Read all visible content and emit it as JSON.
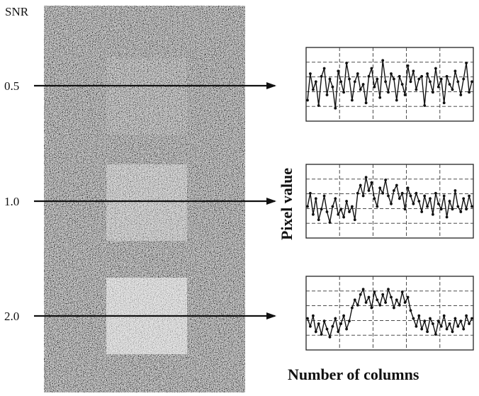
{
  "snr_heading": "SNR",
  "rows": [
    {
      "snr_label": "0.5",
      "plot": [
        -0.6,
        0.4,
        -0.2,
        0.1,
        -0.8,
        0.3,
        0.6,
        -0.4,
        0.2,
        -0.1,
        -0.9,
        0.5,
        0.1,
        -0.3,
        0.8,
        0.2,
        -0.6,
        0.1,
        0.4,
        -0.2,
        0.0,
        -0.7,
        0.3,
        0.6,
        -0.1,
        0.2,
        -0.5,
        0.9,
        0.1,
        -0.3,
        0.4,
        0.2,
        -0.6,
        0.3,
        0.0,
        -0.4,
        0.7,
        0.1,
        0.5,
        -0.2,
        0.2,
        0.3,
        -0.8,
        0.4,
        0.1,
        -0.3,
        0.6,
        -0.1,
        0.2,
        -0.7,
        0.3,
        0.0,
        -0.2,
        0.5,
        0.1,
        -0.4,
        0.2,
        0.8,
        -0.3,
        0.1
      ]
    },
    {
      "snr_label": "1.0",
      "plot": [
        -0.2,
        0.3,
        -0.5,
        0.1,
        -0.7,
        -0.3,
        0.2,
        -0.4,
        -0.8,
        -0.2,
        0.1,
        -0.5,
        -0.3,
        -0.6,
        0.0,
        -0.4,
        -0.2,
        -0.7,
        0.3,
        0.6,
        0.2,
        0.9,
        0.4,
        0.7,
        0.1,
        -0.2,
        0.5,
        0.3,
        0.8,
        0.2,
        -0.1,
        0.4,
        0.6,
        0.1,
        0.3,
        -0.3,
        0.5,
        0.2,
        -0.1,
        0.3,
        0.0,
        -0.4,
        0.2,
        -0.2,
        0.1,
        -0.5,
        0.3,
        -0.1,
        -0.3,
        0.2,
        -0.6,
        0.0,
        -0.3,
        0.4,
        -0.2,
        -0.4,
        0.1,
        -0.3,
        0.2,
        -0.2
      ]
    },
    {
      "snr_label": "2.0",
      "plot": [
        -0.2,
        -0.5,
        -0.1,
        -0.7,
        -0.4,
        -0.8,
        -0.3,
        -0.6,
        -0.9,
        -0.5,
        -0.2,
        -0.7,
        -0.4,
        -0.1,
        -0.6,
        -0.3,
        0.2,
        0.5,
        0.3,
        0.7,
        0.9,
        0.4,
        0.6,
        0.2,
        0.8,
        0.5,
        0.3,
        0.7,
        0.4,
        0.9,
        0.6,
        0.2,
        0.5,
        0.3,
        0.8,
        0.4,
        0.6,
        0.1,
        -0.2,
        -0.5,
        -0.1,
        -0.6,
        -0.3,
        -0.7,
        -0.2,
        -0.4,
        -0.8,
        -0.3,
        -0.5,
        -0.1,
        -0.6,
        -0.4,
        -0.7,
        -0.2,
        -0.5,
        -0.3,
        -0.6,
        -0.1,
        -0.4,
        -0.2
      ]
    }
  ],
  "y_axis_label": "Pixel value",
  "x_axis_label": "Number of columns",
  "colors": {
    "arrow": "#111111",
    "trace": "#111111",
    "grid": "#333333",
    "frame": "#222222",
    "noise_bg": "#2a2a2a"
  }
}
